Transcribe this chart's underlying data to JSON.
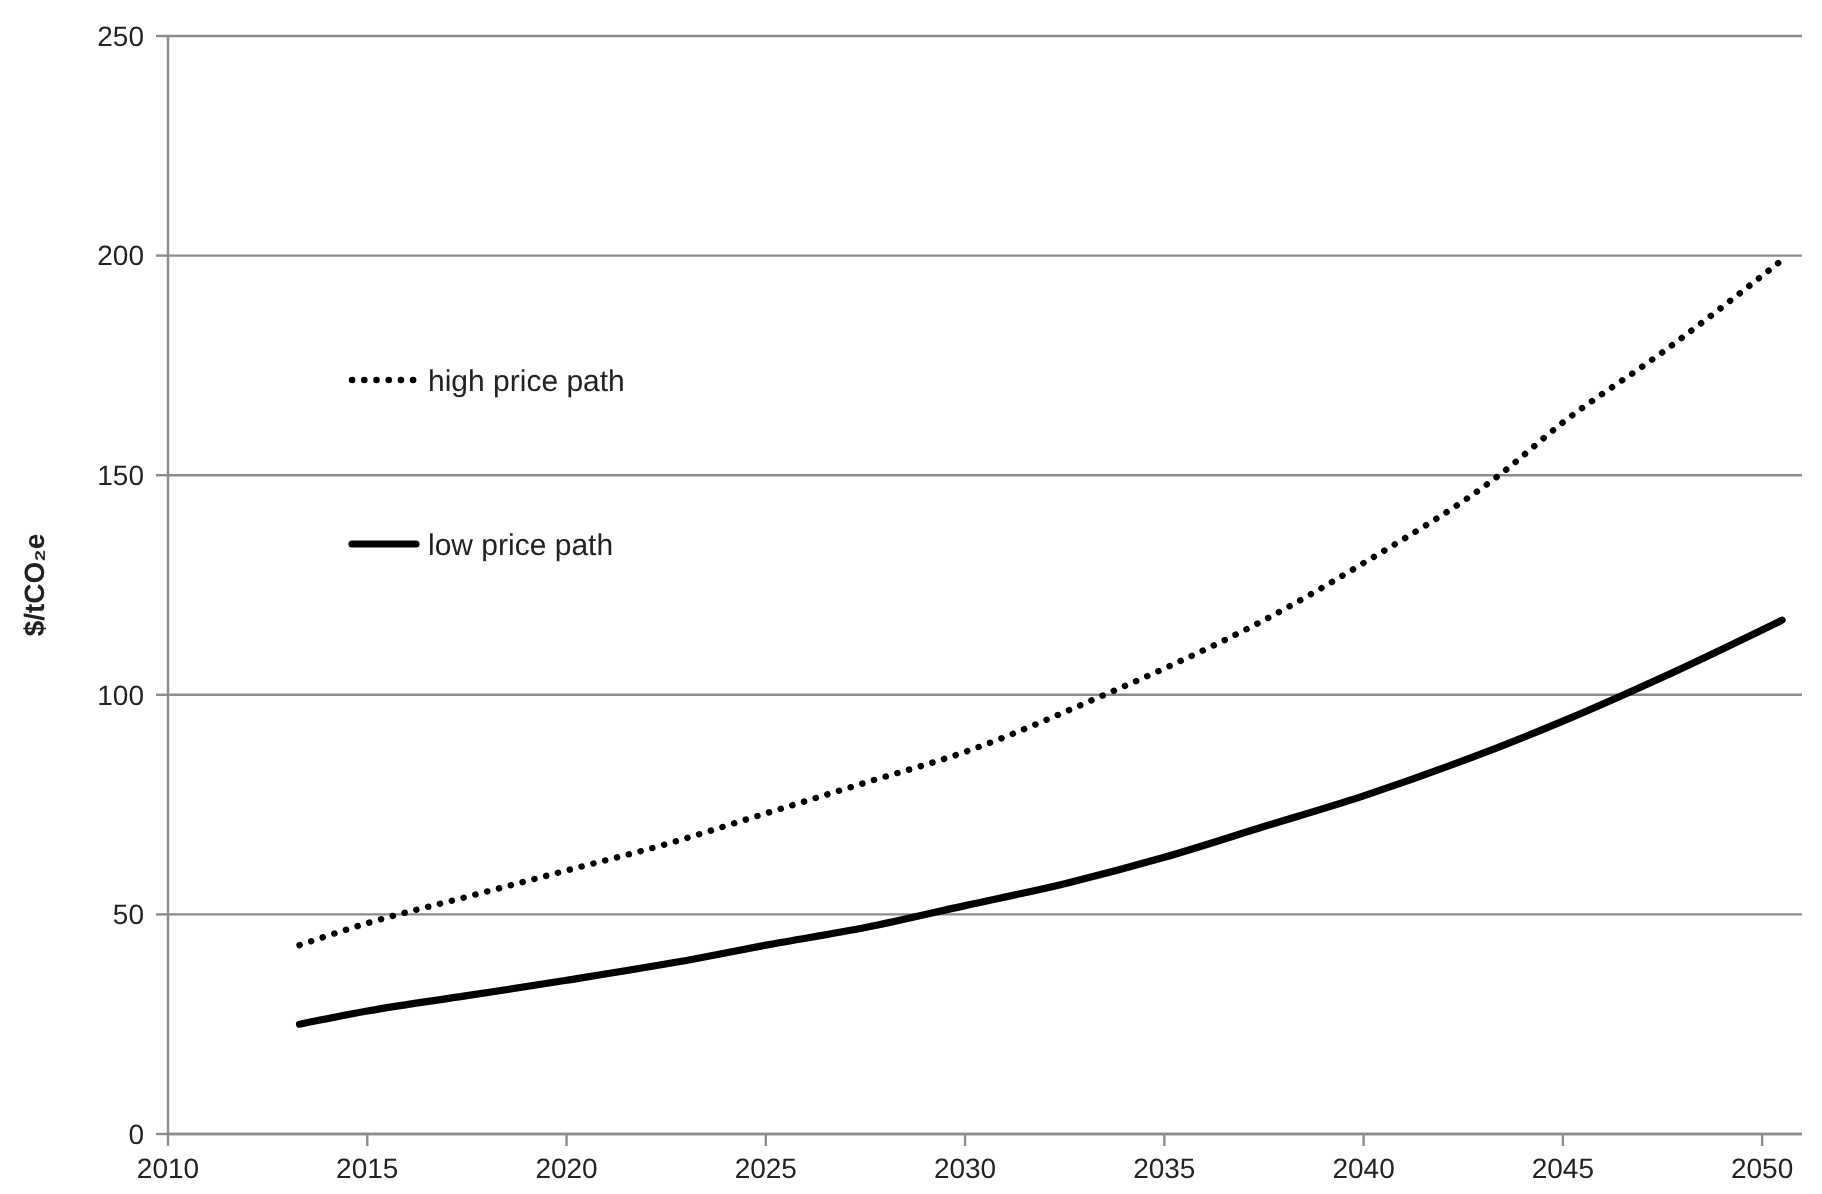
{
  "chart_data": {
    "type": "line",
    "ylabel": "$/tCO₂e",
    "xlim": [
      2010,
      2051
    ],
    "xticks": [
      2010,
      2015,
      2020,
      2025,
      2030,
      2035,
      2040,
      2045,
      2050
    ],
    "ylim": [
      0,
      250
    ],
    "yticks": [
      0,
      50,
      100,
      150,
      200,
      250
    ],
    "grid": "y",
    "legend": "top left",
    "series": [
      {
        "name": "high price path",
        "color": "#000000",
        "line_style": "dotted",
        "x": [
          2013.3,
          2015,
          2017.5,
          2020,
          2022.5,
          2025,
          2027.5,
          2030,
          2033.5,
          2035,
          2037.5,
          2040,
          2043.4,
          2045,
          2047.5,
          2050.5
        ],
        "values": [
          43,
          48,
          54,
          60,
          66,
          73,
          80,
          87,
          100,
          106,
          117,
          130,
          150,
          162,
          178,
          199
        ]
      },
      {
        "name": "low price path",
        "color": "#000000",
        "line_style": "solid",
        "x": [
          2013.3,
          2015,
          2017.5,
          2020,
          2023.3,
          2025,
          2027.5,
          2030,
          2032.5,
          2035,
          2037.5,
          2040,
          2042.5,
          2045,
          2047.5,
          2050.5
        ],
        "values": [
          25,
          28,
          31.5,
          35,
          40,
          43,
          47,
          52,
          57,
          63,
          70,
          77,
          85,
          94,
          104,
          117
        ]
      }
    ]
  }
}
